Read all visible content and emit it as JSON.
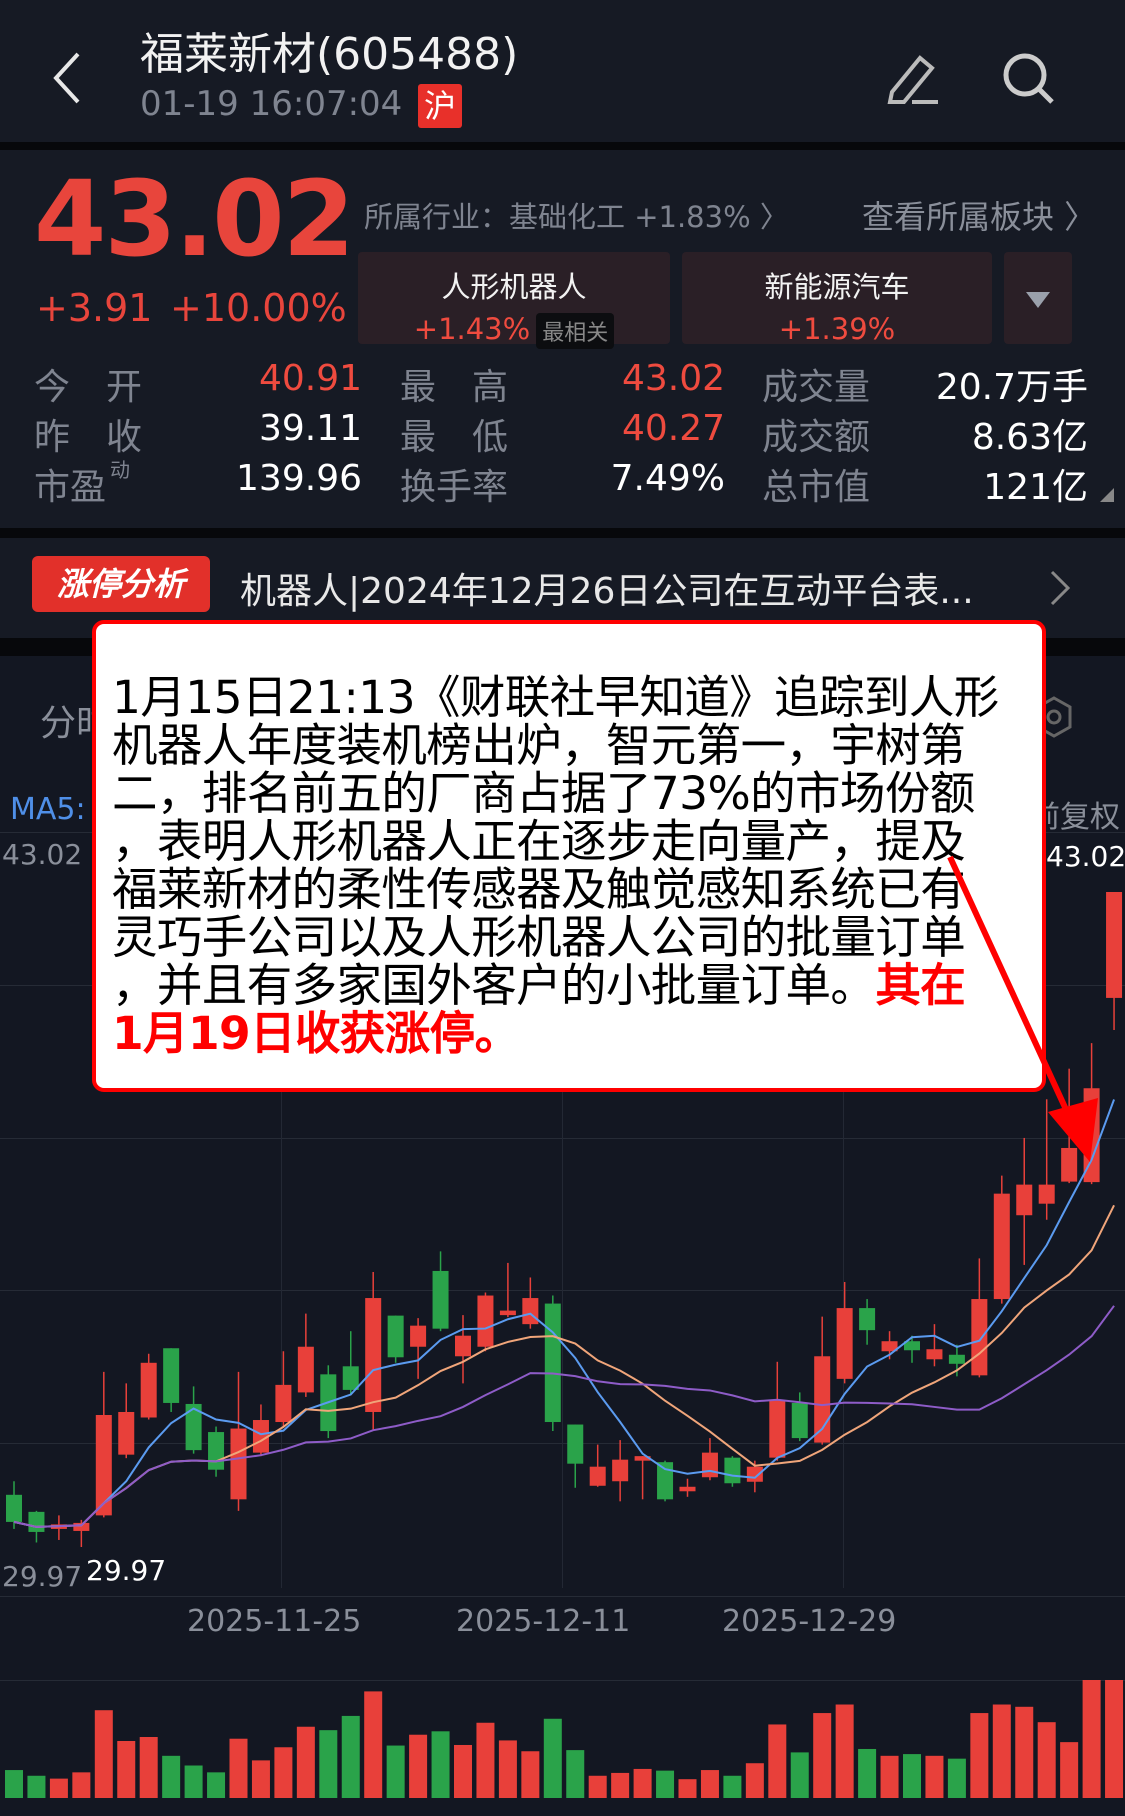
{
  "header": {
    "title": "福莱新材(605488)",
    "datetime": "01-19 16:07:04",
    "exchange_badge": "沪",
    "icons": [
      "back-chevron-icon",
      "edit-pencil-icon",
      "search-icon"
    ]
  },
  "quote": {
    "price": "43.02",
    "change": "+3.91",
    "change_pct": "+10.00%",
    "industry": "所属行业：基础化工 +1.83% 〉",
    "view_sectors": "查看所属板块 〉",
    "sectors": [
      {
        "name": "人形机器人",
        "pct": "+1.43%",
        "badge": "最相关"
      },
      {
        "name": "新能源汽车",
        "pct": "+1.39%"
      }
    ],
    "stats": [
      {
        "label": "今　开",
        "value": "40.91",
        "color": "red"
      },
      {
        "label": "最　高",
        "value": "43.02",
        "color": "red"
      },
      {
        "label": "成交量",
        "value": "20.7万手",
        "color": "white"
      },
      {
        "label": "昨　收",
        "value": "39.11",
        "color": "white"
      },
      {
        "label": "最　低",
        "value": "40.27",
        "color": "red"
      },
      {
        "label": "成交额",
        "value": "8.63亿",
        "color": "white"
      },
      {
        "label": "市盈",
        "label_sup": "动",
        "value": "139.96",
        "color": "white"
      },
      {
        "label": "换手率",
        "value": "7.49%",
        "color": "white"
      },
      {
        "label": "总市值",
        "value": "121亿",
        "color": "white"
      }
    ]
  },
  "banner": {
    "badge": "涨停分析",
    "text": "机器人|2024年12月26日公司在互动平台表..."
  },
  "chart_header": {
    "tab": "分时",
    "ma_label": "MA5:",
    "adjust": "前复权",
    "max_left": "43.02",
    "max_right": "43.02",
    "min_left": "29.97",
    "min_right": "29.97",
    "dates": [
      "2025-11-25",
      "2025-12-11",
      "2025-12-29"
    ]
  },
  "popup": {
    "lines": [
      "1月15日21:13《财联社早知道》追踪到人形",
      "机器人年度装机榜出炉，智元第一，宇树第",
      "二，排名前五的厂商占据了73%的市场份额",
      "，表明人形机器人正在逐步走向量产，提及",
      "福莱新材的柔性传感器及触觉感知系统已有",
      "灵巧手公司以及人形机器人公司的批量订单",
      "，并且有多家国外客户的小批量订单。"
    ],
    "highlight_a": "其在",
    "highlight_b": "1月19日收获涨停。"
  },
  "colors": {
    "up": "#e8403a",
    "down": "#2aa34a",
    "ma5": "#5b9bf0",
    "ma10": "#f0a57a",
    "ma20": "#8e5cc8",
    "arrow": "#ff0000"
  },
  "chart_data": {
    "type": "candlestick",
    "ylim": [
      29.97,
      43.02
    ],
    "ma_periods": [
      5,
      10,
      20
    ],
    "ohlc": [
      [
        31.01,
        31.28,
        30.33,
        30.47
      ],
      [
        30.67,
        30.69,
        30.06,
        30.27
      ],
      [
        30.33,
        30.6,
        30.11,
        30.42
      ],
      [
        30.29,
        30.51,
        29.97,
        30.45
      ],
      [
        30.6,
        33.46,
        30.56,
        32.6
      ],
      [
        31.81,
        33.23,
        31.74,
        32.66
      ],
      [
        32.55,
        33.82,
        32.51,
        33.64
      ],
      [
        33.93,
        33.93,
        32.66,
        32.84
      ],
      [
        32.82,
        33.17,
        31.83,
        31.9
      ],
      [
        32.26,
        32.37,
        31.37,
        31.51
      ],
      [
        30.92,
        33.46,
        30.69,
        32.33
      ],
      [
        31.85,
        32.81,
        31.78,
        32.5
      ],
      [
        32.46,
        33.87,
        32.37,
        33.2
      ],
      [
        33.05,
        34.62,
        32.96,
        33.96
      ],
      [
        33.41,
        33.59,
        32.14,
        32.28
      ],
      [
        33.57,
        34.27,
        33.0,
        33.1
      ],
      [
        32.66,
        35.45,
        32.3,
        34.93
      ],
      [
        34.58,
        34.58,
        33.64,
        33.75
      ],
      [
        33.96,
        34.53,
        33.32,
        34.38
      ],
      [
        35.47,
        35.86,
        34.27,
        34.32
      ],
      [
        33.77,
        34.59,
        33.23,
        34.18
      ],
      [
        33.96,
        35.04,
        33.87,
        34.98
      ],
      [
        34.59,
        35.63,
        34.55,
        34.68
      ],
      [
        34.41,
        35.34,
        34.32,
        34.93
      ],
      [
        34.82,
        34.98,
        32.28,
        32.46
      ],
      [
        32.41,
        32.41,
        31.15,
        31.63
      ],
      [
        31.19,
        32.01,
        31.17,
        31.57
      ],
      [
        31.28,
        32.1,
        30.88,
        31.71
      ],
      [
        31.69,
        31.78,
        30.92,
        31.78
      ],
      [
        31.66,
        31.69,
        30.88,
        30.92
      ],
      [
        31.08,
        31.33,
        30.97,
        31.17
      ],
      [
        31.36,
        32.14,
        31.3,
        31.85
      ],
      [
        31.75,
        31.78,
        31.17,
        31.24
      ],
      [
        31.27,
        31.69,
        31.06,
        31.57
      ],
      [
        31.75,
        33.66,
        31.69,
        32.9
      ],
      [
        32.84,
        33.05,
        32.08,
        32.14
      ],
      [
        32.05,
        34.56,
        32.01,
        33.77
      ],
      [
        33.32,
        35.25,
        33.23,
        34.73
      ],
      [
        34.73,
        34.91,
        34.0,
        34.29
      ],
      [
        33.87,
        34.27,
        33.71,
        34.07
      ],
      [
        34.07,
        34.18,
        33.64,
        33.89
      ],
      [
        33.71,
        34.41,
        33.57,
        33.91
      ],
      [
        33.8,
        34.0,
        33.37,
        33.62
      ],
      [
        33.39,
        35.72,
        33.35,
        34.91
      ],
      [
        34.91,
        37.37,
        34.82,
        37.01
      ],
      [
        36.58,
        38.12,
        35.59,
        37.19
      ],
      [
        36.81,
        38.89,
        36.49,
        37.19
      ],
      [
        37.25,
        39.5,
        37.22,
        37.92
      ],
      [
        37.24,
        40.01,
        37.2,
        39.11
      ],
      [
        40.91,
        43.02,
        40.27,
        43.02
      ]
    ],
    "volume_unit": "万手",
    "volume": [
      4.9,
      3.9,
      3.4,
      4.5,
      15.4,
      10.0,
      10.7,
      7.4,
      5.7,
      4.5,
      10.4,
      6.6,
      8.9,
      12.5,
      11.9,
      14.4,
      18.7,
      9.2,
      11.1,
      11.7,
      9.3,
      13.2,
      10.1,
      8.2,
      13.9,
      8.4,
      3.9,
      4.4,
      5.1,
      4.8,
      3.3,
      4.9,
      3.9,
      6.1,
      12.9,
      8.0,
      14.9,
      16.4,
      8.6,
      7.4,
      7.7,
      7.4,
      6.9,
      14.9,
      16.4,
      16.0,
      13.3,
      9.8,
      20.7,
      20.7
    ]
  }
}
